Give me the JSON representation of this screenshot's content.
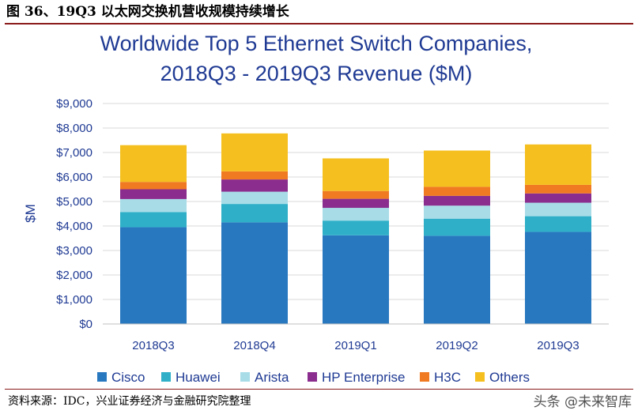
{
  "caption": "图 36、19Q3 以太网交换机营收规模持续增长",
  "source": "资料来源：IDC，兴业证券经济与金融研究院整理",
  "watermark": "头条 @未来智库",
  "chart_data": {
    "type": "bar",
    "stacked": true,
    "title": [
      "Worldwide Top 5 Ethernet Switch Companies,",
      "2018Q3 - 2019Q3 Revenue ($M)"
    ],
    "xlabel": "",
    "ylabel": "$M",
    "ylim": [
      0,
      9000
    ],
    "yticks": [
      0,
      1000,
      2000,
      3000,
      4000,
      5000,
      6000,
      7000,
      8000,
      9000
    ],
    "ytick_labels": [
      "$0",
      "$1,000",
      "$2,000",
      "$3,000",
      "$4,000",
      "$5,000",
      "$6,000",
      "$7,000",
      "$8,000",
      "$9,000"
    ],
    "grid": true,
    "legend_position": "bottom",
    "categories": [
      "2018Q3",
      "2018Q4",
      "2019Q1",
      "2019Q2",
      "2019Q3"
    ],
    "series": [
      {
        "name": "Cisco",
        "color": "#2878c0",
        "values": [
          3950,
          4150,
          3620,
          3600,
          3760
        ]
      },
      {
        "name": "Huawei",
        "color": "#2fb0c8",
        "values": [
          620,
          750,
          600,
          700,
          640
        ]
      },
      {
        "name": "Arista",
        "color": "#a8dde8",
        "values": [
          530,
          500,
          520,
          530,
          550
        ]
      },
      {
        "name": "HP Enterprise",
        "color": "#8a2d8e",
        "values": [
          400,
          500,
          370,
          400,
          380
        ]
      },
      {
        "name": "H3C",
        "color": "#f07a22",
        "values": [
          300,
          330,
          320,
          370,
          350
        ]
      },
      {
        "name": "Others",
        "color": "#f5c01f",
        "values": [
          1500,
          1550,
          1330,
          1480,
          1650
        ]
      }
    ]
  }
}
